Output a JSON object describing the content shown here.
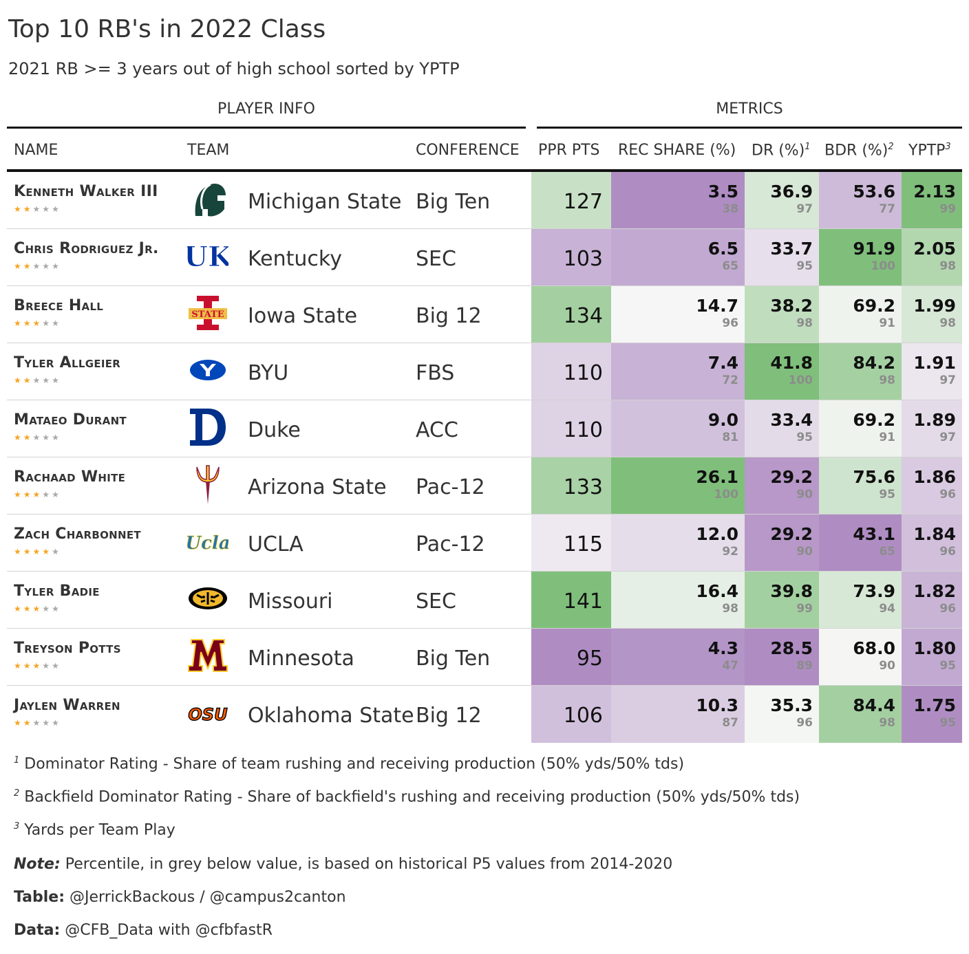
{
  "header": {
    "title": "Top 10 RB's in 2022 Class",
    "subtitle": "2021 RB >= 3 years out of high school sorted by YPTP"
  },
  "spanners": {
    "player_info": "PLAYER INFO",
    "metrics": "METRICS"
  },
  "columns": {
    "name": "NAME",
    "team": "TEAM",
    "conference": "CONFERENCE",
    "ppr": "PPR PTS",
    "rec": "REC SHARE (%)",
    "dr": "DR (%)",
    "dr_mark": "1",
    "bdr": "BDR (%)",
    "bdr_mark": "2",
    "yptp": "YPTP",
    "yptp_mark": "3"
  },
  "chart_data": {
    "type": "table",
    "title": "Top 10 RB's in 2022 Class",
    "subtitle": "2021 RB >= 3 years out of high school sorted by YPTP",
    "color_scale": {
      "low": "#af8dc3",
      "mid": "#f7f7f7",
      "high": "#7fbf7b"
    },
    "rows": [
      {
        "name": "Kenneth Walker III",
        "stars": 2,
        "team": "Michigan State",
        "logo": "spartan-helmet-icon",
        "conference": "Big Ten",
        "ppr": "127",
        "rec": "3.5",
        "rec_pct": "38",
        "dr": "36.9",
        "dr_pct": "97",
        "bdr": "53.6",
        "bdr_pct": "77",
        "yptp": "2.13",
        "yptp_pct": "99"
      },
      {
        "name": "Chris Rodriguez Jr.",
        "stars": 2,
        "team": "Kentucky",
        "logo": "uk-logo-icon",
        "conference": "SEC",
        "ppr": "103",
        "rec": "6.5",
        "rec_pct": "65",
        "dr": "33.7",
        "dr_pct": "95",
        "bdr": "91.9",
        "bdr_pct": "100",
        "yptp": "2.05",
        "yptp_pct": "98"
      },
      {
        "name": "Breece Hall",
        "stars": 3,
        "team": "Iowa State",
        "logo": "iowa-state-logo-icon",
        "conference": "Big 12",
        "ppr": "134",
        "rec": "14.7",
        "rec_pct": "96",
        "dr": "38.2",
        "dr_pct": "98",
        "bdr": "69.2",
        "bdr_pct": "91",
        "yptp": "1.99",
        "yptp_pct": "98"
      },
      {
        "name": "Tyler Allgeier",
        "stars": 2,
        "team": "BYU",
        "logo": "byu-logo-icon",
        "conference": "FBS",
        "ppr": "110",
        "rec": "7.4",
        "rec_pct": "72",
        "dr": "41.8",
        "dr_pct": "100",
        "bdr": "84.2",
        "bdr_pct": "98",
        "yptp": "1.91",
        "yptp_pct": "97"
      },
      {
        "name": "Mataeo Durant",
        "stars": 2,
        "team": "Duke",
        "logo": "duke-logo-icon",
        "conference": "ACC",
        "ppr": "110",
        "rec": "9.0",
        "rec_pct": "81",
        "dr": "33.4",
        "dr_pct": "95",
        "bdr": "69.2",
        "bdr_pct": "91",
        "yptp": "1.89",
        "yptp_pct": "97"
      },
      {
        "name": "Rachaad White",
        "stars": 3,
        "team": "Arizona State",
        "logo": "pitchfork-icon",
        "conference": "Pac-12",
        "ppr": "133",
        "rec": "26.1",
        "rec_pct": "100",
        "dr": "29.2",
        "dr_pct": "90",
        "bdr": "75.6",
        "bdr_pct": "95",
        "yptp": "1.86",
        "yptp_pct": "96"
      },
      {
        "name": "Zach Charbonnet",
        "stars": 4,
        "team": "UCLA",
        "logo": "ucla-script-icon",
        "conference": "Pac-12",
        "ppr": "115",
        "rec": "12.0",
        "rec_pct": "92",
        "dr": "29.2",
        "dr_pct": "90",
        "bdr": "43.1",
        "bdr_pct": "65",
        "yptp": "1.84",
        "yptp_pct": "96"
      },
      {
        "name": "Tyler Badie",
        "stars": 3,
        "team": "Missouri",
        "logo": "tiger-head-icon",
        "conference": "SEC",
        "ppr": "141",
        "rec": "16.4",
        "rec_pct": "98",
        "dr": "39.8",
        "dr_pct": "99",
        "bdr": "73.9",
        "bdr_pct": "94",
        "yptp": "1.82",
        "yptp_pct": "96"
      },
      {
        "name": "Treyson Potts",
        "stars": 3,
        "team": "Minnesota",
        "logo": "minnesota-m-icon",
        "conference": "Big Ten",
        "ppr": "95",
        "rec": "4.3",
        "rec_pct": "47",
        "dr": "28.5",
        "dr_pct": "89",
        "bdr": "68.0",
        "bdr_pct": "90",
        "yptp": "1.80",
        "yptp_pct": "95"
      },
      {
        "name": "Jaylen Warren",
        "stars": 2,
        "team": "Oklahoma State",
        "logo": "osu-logo-icon",
        "conference": "Big 12",
        "ppr": "106",
        "rec": "10.3",
        "rec_pct": "87",
        "dr": "35.3",
        "dr_pct": "96",
        "bdr": "84.4",
        "bdr_pct": "98",
        "yptp": "1.75",
        "yptp_pct": "95"
      }
    ]
  },
  "footnotes": {
    "f1_mark": "1",
    "f1": "Dominator Rating - Share of team rushing and receiving production (50% yds/50% tds)",
    "f2_mark": "2",
    "f2": "Backfield Dominator Rating - Share of backfield's rushing and receiving production (50% yds/50% tds)",
    "f3_mark": "3",
    "f3": "Yards per Team Play",
    "note_label": "Note:",
    "note": "Percentile, in grey below value, is based on historical P5 values from 2014-2020",
    "table_label": "Table:",
    "table": "@JerrickBackous / @campus2canton",
    "data_label": "Data:",
    "data": "@CFB_Data with @cfbfastR"
  },
  "icons": {
    "star": "star-icon"
  }
}
